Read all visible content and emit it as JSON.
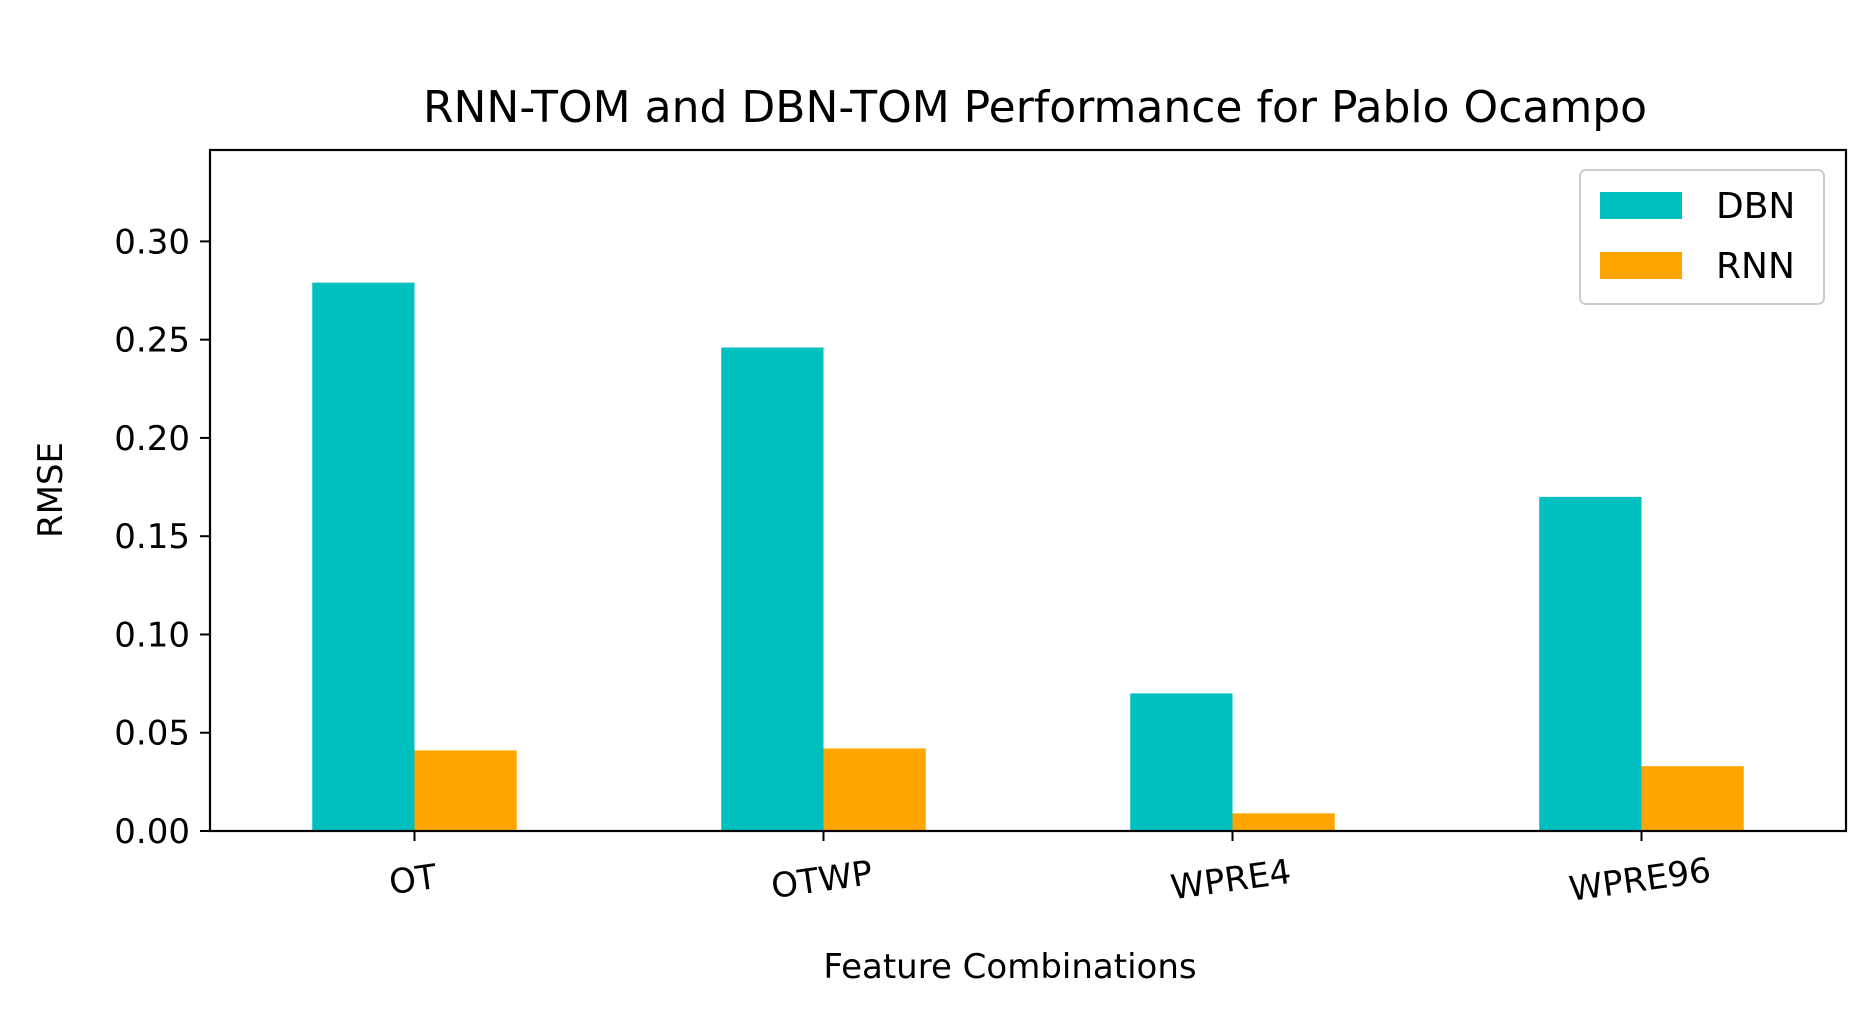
{
  "chart_data": {
    "type": "bar",
    "title": "RNN-TOM and DBN-TOM Performance for Pablo Ocampo",
    "xlabel": "Feature Combinations",
    "ylabel": "RMSE",
    "categories": [
      "OT",
      "OTWP",
      "WPRE4",
      "WPRE96"
    ],
    "series": [
      {
        "name": "DBN",
        "color": "#00bfbf",
        "values": [
          0.279,
          0.246,
          0.07,
          0.17
        ]
      },
      {
        "name": "RNN",
        "color": "#ffa500",
        "values": [
          0.041,
          0.042,
          0.009,
          0.033
        ]
      }
    ],
    "ylim": [
      0,
      0.3465
    ],
    "yticks": [
      0.0,
      0.05,
      0.1,
      0.15,
      0.2,
      0.25,
      0.3
    ],
    "ytick_labels": [
      "0.00",
      "0.05",
      "0.10",
      "0.15",
      "0.20",
      "0.25",
      "0.30"
    ],
    "xtick_rotation_deg": -8,
    "grid": false,
    "legend": "top-right"
  }
}
